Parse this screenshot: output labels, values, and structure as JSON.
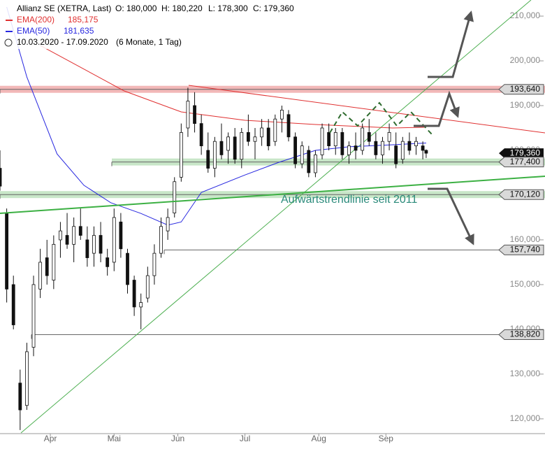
{
  "chart_data": {
    "type": "candlestick",
    "header": {
      "title": "Allianz SE (XETRA, Last)",
      "open": "O: 180,000",
      "high": "H: 180,220",
      "low": "L: 178,300",
      "close": "C: 179,360",
      "range": "10.03.2020 - 17.09.2020",
      "period": "(6 Monate, 1 Tag)"
    },
    "annotation": "Aufwärtstrendlinie seit 2011",
    "xlim": [
      1,
      163
    ],
    "ylim": [
      116700,
      213600
    ],
    "xticks": [
      {
        "value": 16,
        "label": "Apr"
      },
      {
        "value": 35,
        "label": "Mai"
      },
      {
        "value": 54,
        "label": "Jun"
      },
      {
        "value": 74,
        "label": "Jul"
      },
      {
        "value": 96,
        "label": "Aug"
      },
      {
        "value": 116,
        "label": "Sep"
      }
    ],
    "yticks": [
      {
        "value": 120000,
        "label": "120,000"
      },
      {
        "value": 130000,
        "label": "130,000"
      },
      {
        "value": 140000,
        "label": "140,000"
      },
      {
        "value": 150000,
        "label": "150,000"
      },
      {
        "value": 160000,
        "label": "160,000"
      },
      {
        "value": 170000,
        "label": "170,000"
      },
      {
        "value": 180000,
        "label": "180,000"
      },
      {
        "value": 190000,
        "label": "190,000"
      },
      {
        "value": 200000,
        "label": "200,000"
      },
      {
        "value": 210000,
        "label": "210,000"
      }
    ],
    "candles": {
      "x": [
        1,
        3,
        5,
        7,
        9,
        11,
        13,
        15,
        17,
        19,
        21,
        23,
        25,
        27,
        29,
        31,
        33,
        35,
        37,
        39,
        41,
        43,
        45,
        47,
        49,
        51,
        53,
        55,
        57,
        59,
        61,
        63,
        65,
        67,
        69,
        71,
        73,
        75,
        77,
        79,
        81,
        83,
        85,
        87,
        89,
        91,
        93,
        95,
        97,
        99,
        101,
        103,
        105,
        107,
        109,
        111,
        113,
        115,
        117,
        119,
        121,
        123,
        125,
        127,
        128
      ],
      "open": [
        176000,
        166000,
        150000,
        128000,
        123000,
        136000,
        149000,
        156000,
        151000,
        160000,
        161000,
        159000,
        163000,
        160000,
        157000,
        161000,
        156000,
        155000,
        164000,
        157000,
        151000,
        145000,
        147000,
        152000,
        157000,
        162000,
        166000,
        174000,
        185000,
        190000,
        186000,
        180000,
        176000,
        182000,
        180000,
        183000,
        178000,
        184000,
        182000,
        183000,
        185000,
        182000,
        187000,
        188000,
        183000,
        177000,
        180000,
        175000,
        179000,
        184000,
        181000,
        184000,
        179000,
        181000,
        180000,
        184000,
        182000,
        179000,
        182000,
        181000,
        178000,
        182000,
        181000,
        181000,
        180000
      ],
      "high": [
        180000,
        167000,
        152000,
        131000,
        137000,
        152000,
        158000,
        160000,
        161000,
        164000,
        166000,
        165000,
        167000,
        163000,
        163000,
        164000,
        158000,
        167000,
        166000,
        158000,
        152000,
        148000,
        154000,
        159000,
        165000,
        167000,
        174000,
        186000,
        194000,
        193000,
        188000,
        184000,
        183000,
        186000,
        184000,
        185000,
        185000,
        188000,
        185000,
        187000,
        187000,
        188000,
        190000,
        189000,
        184000,
        182000,
        181000,
        180000,
        186000,
        186000,
        185000,
        185000,
        182000,
        184000,
        186000,
        187000,
        184000,
        183000,
        186000,
        184000,
        183000,
        184000,
        183000,
        182000,
        180220
      ],
      "low": [
        171000,
        146000,
        140000,
        117500,
        122000,
        134000,
        147000,
        150000,
        149000,
        156000,
        158000,
        155000,
        160000,
        154000,
        154000,
        155000,
        152000,
        153000,
        156000,
        148000,
        143000,
        140000,
        146000,
        150000,
        156000,
        160000,
        165000,
        173000,
        183000,
        184000,
        179000,
        175000,
        174000,
        178000,
        177000,
        177000,
        176000,
        181000,
        178000,
        181000,
        180000,
        181000,
        184000,
        182000,
        176000,
        176000,
        174000,
        174000,
        178000,
        180000,
        179000,
        178000,
        177000,
        178000,
        179000,
        181000,
        178000,
        177000,
        180000,
        176000,
        177000,
        179000,
        179000,
        178000,
        178300
      ],
      "close": [
        172000,
        149000,
        141000,
        122000,
        135000,
        150000,
        155000,
        152000,
        159000,
        162000,
        159000,
        163000,
        161000,
        156000,
        161000,
        157000,
        154000,
        165000,
        158000,
        150000,
        145000,
        146000,
        152000,
        157000,
        163000,
        165000,
        173000,
        184000,
        191000,
        186000,
        181000,
        176000,
        182000,
        179000,
        183000,
        178000,
        184000,
        182000,
        183000,
        185000,
        181000,
        187000,
        189000,
        183000,
        177000,
        181000,
        175000,
        179000,
        185000,
        181000,
        184000,
        179000,
        181000,
        180000,
        185000,
        182000,
        179000,
        182000,
        184000,
        177000,
        182000,
        180000,
        182000,
        180000,
        179360
      ]
    },
    "series": [
      {
        "name": "EMA(200)",
        "last": "185,175",
        "color": "#e03030",
        "x": [
          13,
          38,
          55,
          74,
          95,
          118,
          128
        ],
        "values": [
          203440,
          193280,
          188590,
          186720,
          185780,
          185000,
          185175
        ]
      },
      {
        "name": "EMA(50)",
        "last": "181,635",
        "color": "#2828e0",
        "x": [
          3,
          9,
          18,
          26,
          34,
          43,
          51,
          55,
          61,
          74,
          84,
          95,
          105,
          118,
          128
        ],
        "values": [
          212030,
          196400,
          179200,
          172200,
          168300,
          165900,
          163300,
          164000,
          170600,
          174500,
          177300,
          180000,
          180800,
          181250,
          181635
        ]
      }
    ],
    "levels": [
      {
        "value": 193640,
        "label": "193,640"
      },
      {
        "value": 177400,
        "label": "177,400"
      },
      {
        "value": 170120,
        "label": "170,120"
      },
      {
        "value": 157740,
        "label": "157,740"
      },
      {
        "value": 138820,
        "label": "138,820"
      }
    ],
    "last_price": {
      "value": 179360,
      "label": "179,360"
    }
  }
}
